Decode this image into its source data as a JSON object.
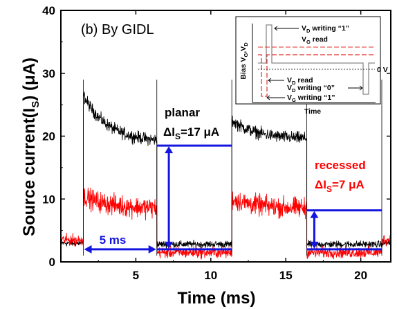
{
  "chart_data": {
    "type": "line",
    "title": "(b) By GIDL",
    "xlabel": "Time (ms)",
    "ylabel": "Source current(I",
    "ylabel_sub": "S",
    "ylabel_unit": ") (μA)",
    "xlim": [
      0,
      22
    ],
    "ylim": [
      0,
      40
    ],
    "x_ticks": [
      5,
      10,
      15,
      20
    ],
    "y_ticks": [
      0,
      10,
      20,
      30,
      40
    ],
    "series": [
      {
        "name": "planar",
        "color": "#000000",
        "segments": [
          {
            "x0": 0.0,
            "x1": 1.5,
            "y0": 3.0,
            "y1": 3.0
          },
          {
            "x0": 1.5,
            "x1": 6.4,
            "y0": 26.5,
            "y1": 19.0
          },
          {
            "x0": 6.4,
            "x1": 11.4,
            "y0": 2.8,
            "y1": 2.8
          },
          {
            "x0": 11.4,
            "x1": 16.4,
            "y0": 22.5,
            "y1": 19.5
          },
          {
            "x0": 16.4,
            "x1": 21.4,
            "y0": 2.8,
            "y1": 2.8
          },
          {
            "x0": 21.4,
            "x1": 22.0,
            "y0": 3.0,
            "y1": 3.0
          }
        ]
      },
      {
        "name": "recessed",
        "color": "#ff0000",
        "segments": [
          {
            "x0": 0.0,
            "x1": 1.5,
            "y0": 3.5,
            "y1": 3.5
          },
          {
            "x0": 1.5,
            "x1": 6.4,
            "y0": 10.5,
            "y1": 8.5
          },
          {
            "x0": 6.4,
            "x1": 11.4,
            "y0": 1.5,
            "y1": 1.5
          },
          {
            "x0": 11.4,
            "x1": 16.4,
            "y0": 10.0,
            "y1": 8.5
          },
          {
            "x0": 16.4,
            "x1": 21.4,
            "y0": 1.5,
            "y1": 1.5
          },
          {
            "x0": 21.4,
            "x1": 22.0,
            "y0": 3.5,
            "y1": 3.5
          }
        ]
      }
    ],
    "markers": {
      "planar_high_line": {
        "x0": 6.4,
        "x1": 11.4,
        "y": 18.5
      },
      "planar_low_line": {
        "x0": 6.4,
        "x1": 11.4,
        "y": 2.0
      },
      "planar_arrow_x": 7.2,
      "recessed_high_line": {
        "x0": 16.4,
        "x1": 21.4,
        "y": 8.2
      },
      "recessed_low_line": {
        "x0": 16.4,
        "x1": 21.4,
        "y": 2.0
      },
      "recessed_arrow_x": 16.9,
      "span_arrow": {
        "x0": 1.5,
        "x1": 6.4,
        "y": 2.0
      }
    },
    "annotations": {
      "planar_label": "planar",
      "planar_delta": "ΔI",
      "planar_delta_sub": "S",
      "planar_delta_val": "=17 μA",
      "recessed_label": "recessed",
      "recessed_delta": "ΔI",
      "recessed_delta_sub": "S",
      "recessed_delta_val": "=7 μA",
      "span_label": "5 ms"
    },
    "inset": {
      "ylabel": "Bias V",
      "ylabel_sub1": "G",
      "ylabel_mid": ",V",
      "ylabel_sub2": "D",
      "xlabel": "Time",
      "zero_label": "0 V",
      "labels": [
        {
          "main": "V",
          "sub": "D",
          "rest": " writing “1”"
        },
        {
          "main": "V",
          "sub": "G",
          "rest": " read"
        },
        {
          "main": "V",
          "sub": "D",
          "rest": " read"
        },
        {
          "main": "V",
          "sub": "D",
          "rest": " writing “0”"
        },
        {
          "main": "V",
          "sub": "G",
          "rest": " writing “1”"
        }
      ]
    },
    "colors": {
      "planar": "#000000",
      "recessed": "#ff0000",
      "marker": "#1515e0",
      "annotation_red": "#ff0000"
    }
  }
}
